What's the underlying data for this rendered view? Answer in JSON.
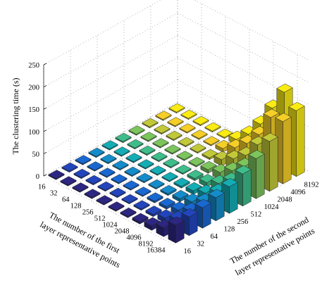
{
  "chart_data": {
    "type": "bar3d",
    "title": "",
    "zlabel": "The clustering time (s)",
    "xlabel_lines": [
      "The number of the first",
      "layer representative points"
    ],
    "ylabel_lines": [
      "The number of the second",
      "layer representative points"
    ],
    "zlim": [
      0,
      250
    ],
    "z_ticks": [
      "0",
      "50",
      "100",
      "150",
      "200",
      "250"
    ],
    "grid": true,
    "first_layer_points": [
      "16",
      "32",
      "64",
      "128",
      "256",
      "512",
      "1024",
      "2048",
      "4096",
      "8192",
      "16384"
    ],
    "second_layer_points": [
      "16",
      "32",
      "64",
      "128",
      "256",
      "512",
      "1024",
      "2048",
      "4096",
      "8192"
    ],
    "values": [
      [
        1,
        1,
        1,
        1,
        1,
        1,
        1,
        1,
        1,
        1
      ],
      [
        1,
        1,
        1,
        1,
        1,
        1,
        1,
        1,
        1,
        1
      ],
      [
        1,
        1,
        1,
        1,
        1,
        1,
        1,
        1,
        1,
        1
      ],
      [
        1,
        1,
        1,
        1,
        1,
        1,
        1,
        1,
        1,
        1
      ],
      [
        1,
        1,
        1,
        1,
        1,
        1,
        1,
        1,
        2,
        2
      ],
      [
        2,
        2,
        2,
        2,
        2,
        2,
        3,
        4,
        8,
        12
      ],
      [
        3,
        3,
        4,
        4,
        4,
        5,
        8,
        14,
        24,
        38
      ],
      [
        5,
        5,
        6,
        7,
        8,
        10,
        16,
        30,
        48,
        75
      ],
      [
        10,
        11,
        12,
        14,
        17,
        22,
        34,
        52,
        82,
        125
      ],
      [
        20,
        22,
        24,
        28,
        33,
        42,
        58,
        90,
        135,
        175
      ],
      [
        40,
        42,
        46,
        52,
        60,
        72,
        90,
        112,
        140,
        148
      ]
    ]
  }
}
